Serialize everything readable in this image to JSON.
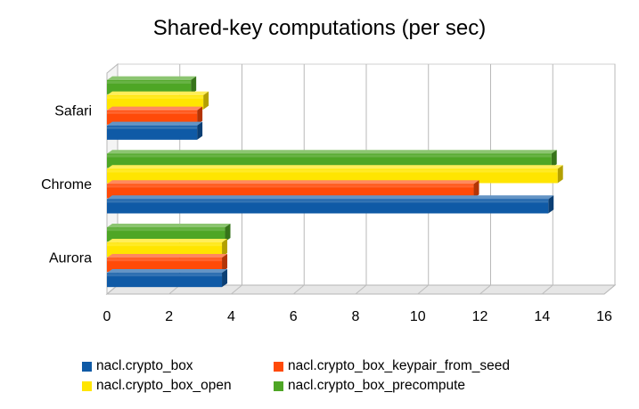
{
  "chart_data": {
    "type": "bar",
    "orientation": "horizontal",
    "title": "Shared-key computations (per sec)",
    "categories": [
      "Safari",
      "Chrome",
      "Aurora"
    ],
    "series": [
      {
        "name": "nacl.crypto_box",
        "color": "#0f5aa6",
        "values": [
          2.9,
          14.2,
          3.7
        ]
      },
      {
        "name": "nacl.crypto_box_keypair_from_seed",
        "color": "#ff4a08",
        "values": [
          2.9,
          11.8,
          3.7
        ]
      },
      {
        "name": "nacl.crypto_box_open",
        "color": "#ffe500",
        "values": [
          3.1,
          14.5,
          3.7
        ]
      },
      {
        "name": "nacl.crypto_box_precompute",
        "color": "#4ea625",
        "values": [
          2.7,
          14.3,
          3.8
        ]
      }
    ],
    "xlim": [
      0,
      16
    ],
    "xticks": [
      "0",
      "2",
      "4",
      "6",
      "8",
      "10",
      "12",
      "14",
      "16"
    ],
    "grid": true,
    "legend_position": "bottom"
  }
}
